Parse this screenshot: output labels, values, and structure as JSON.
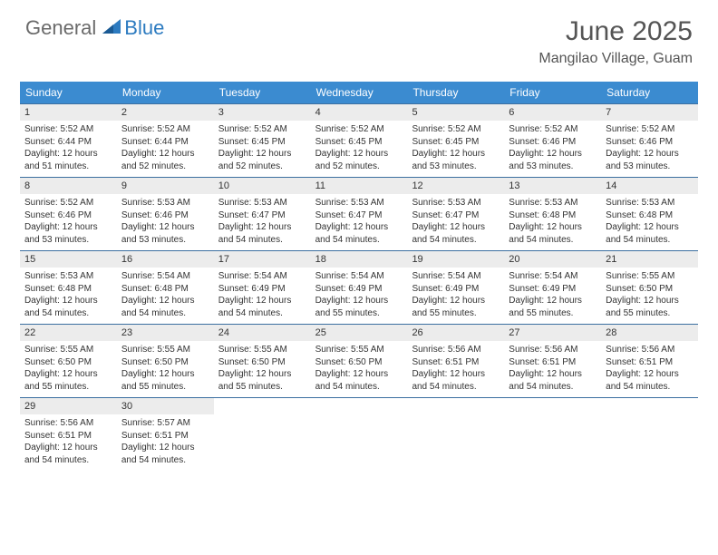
{
  "brand": {
    "word1": "General",
    "word2": "Blue"
  },
  "title": "June 2025",
  "location": "Mangilao Village, Guam",
  "colors": {
    "header_bg": "#3b8bd0",
    "header_text": "#ffffff",
    "daynum_bg": "#ececec",
    "rule": "#3b6fa0",
    "logo_gray": "#6a6a6a",
    "logo_blue": "#2d7bc0"
  },
  "day_names": [
    "Sunday",
    "Monday",
    "Tuesday",
    "Wednesday",
    "Thursday",
    "Friday",
    "Saturday"
  ],
  "weeks": [
    [
      {
        "n": "1",
        "sr": "Sunrise: 5:52 AM",
        "ss": "Sunset: 6:44 PM",
        "d1": "Daylight: 12 hours",
        "d2": "and 51 minutes."
      },
      {
        "n": "2",
        "sr": "Sunrise: 5:52 AM",
        "ss": "Sunset: 6:44 PM",
        "d1": "Daylight: 12 hours",
        "d2": "and 52 minutes."
      },
      {
        "n": "3",
        "sr": "Sunrise: 5:52 AM",
        "ss": "Sunset: 6:45 PM",
        "d1": "Daylight: 12 hours",
        "d2": "and 52 minutes."
      },
      {
        "n": "4",
        "sr": "Sunrise: 5:52 AM",
        "ss": "Sunset: 6:45 PM",
        "d1": "Daylight: 12 hours",
        "d2": "and 52 minutes."
      },
      {
        "n": "5",
        "sr": "Sunrise: 5:52 AM",
        "ss": "Sunset: 6:45 PM",
        "d1": "Daylight: 12 hours",
        "d2": "and 53 minutes."
      },
      {
        "n": "6",
        "sr": "Sunrise: 5:52 AM",
        "ss": "Sunset: 6:46 PM",
        "d1": "Daylight: 12 hours",
        "d2": "and 53 minutes."
      },
      {
        "n": "7",
        "sr": "Sunrise: 5:52 AM",
        "ss": "Sunset: 6:46 PM",
        "d1": "Daylight: 12 hours",
        "d2": "and 53 minutes."
      }
    ],
    [
      {
        "n": "8",
        "sr": "Sunrise: 5:52 AM",
        "ss": "Sunset: 6:46 PM",
        "d1": "Daylight: 12 hours",
        "d2": "and 53 minutes."
      },
      {
        "n": "9",
        "sr": "Sunrise: 5:53 AM",
        "ss": "Sunset: 6:46 PM",
        "d1": "Daylight: 12 hours",
        "d2": "and 53 minutes."
      },
      {
        "n": "10",
        "sr": "Sunrise: 5:53 AM",
        "ss": "Sunset: 6:47 PM",
        "d1": "Daylight: 12 hours",
        "d2": "and 54 minutes."
      },
      {
        "n": "11",
        "sr": "Sunrise: 5:53 AM",
        "ss": "Sunset: 6:47 PM",
        "d1": "Daylight: 12 hours",
        "d2": "and 54 minutes."
      },
      {
        "n": "12",
        "sr": "Sunrise: 5:53 AM",
        "ss": "Sunset: 6:47 PM",
        "d1": "Daylight: 12 hours",
        "d2": "and 54 minutes."
      },
      {
        "n": "13",
        "sr": "Sunrise: 5:53 AM",
        "ss": "Sunset: 6:48 PM",
        "d1": "Daylight: 12 hours",
        "d2": "and 54 minutes."
      },
      {
        "n": "14",
        "sr": "Sunrise: 5:53 AM",
        "ss": "Sunset: 6:48 PM",
        "d1": "Daylight: 12 hours",
        "d2": "and 54 minutes."
      }
    ],
    [
      {
        "n": "15",
        "sr": "Sunrise: 5:53 AM",
        "ss": "Sunset: 6:48 PM",
        "d1": "Daylight: 12 hours",
        "d2": "and 54 minutes."
      },
      {
        "n": "16",
        "sr": "Sunrise: 5:54 AM",
        "ss": "Sunset: 6:48 PM",
        "d1": "Daylight: 12 hours",
        "d2": "and 54 minutes."
      },
      {
        "n": "17",
        "sr": "Sunrise: 5:54 AM",
        "ss": "Sunset: 6:49 PM",
        "d1": "Daylight: 12 hours",
        "d2": "and 54 minutes."
      },
      {
        "n": "18",
        "sr": "Sunrise: 5:54 AM",
        "ss": "Sunset: 6:49 PM",
        "d1": "Daylight: 12 hours",
        "d2": "and 55 minutes."
      },
      {
        "n": "19",
        "sr": "Sunrise: 5:54 AM",
        "ss": "Sunset: 6:49 PM",
        "d1": "Daylight: 12 hours",
        "d2": "and 55 minutes."
      },
      {
        "n": "20",
        "sr": "Sunrise: 5:54 AM",
        "ss": "Sunset: 6:49 PM",
        "d1": "Daylight: 12 hours",
        "d2": "and 55 minutes."
      },
      {
        "n": "21",
        "sr": "Sunrise: 5:55 AM",
        "ss": "Sunset: 6:50 PM",
        "d1": "Daylight: 12 hours",
        "d2": "and 55 minutes."
      }
    ],
    [
      {
        "n": "22",
        "sr": "Sunrise: 5:55 AM",
        "ss": "Sunset: 6:50 PM",
        "d1": "Daylight: 12 hours",
        "d2": "and 55 minutes."
      },
      {
        "n": "23",
        "sr": "Sunrise: 5:55 AM",
        "ss": "Sunset: 6:50 PM",
        "d1": "Daylight: 12 hours",
        "d2": "and 55 minutes."
      },
      {
        "n": "24",
        "sr": "Sunrise: 5:55 AM",
        "ss": "Sunset: 6:50 PM",
        "d1": "Daylight: 12 hours",
        "d2": "and 55 minutes."
      },
      {
        "n": "25",
        "sr": "Sunrise: 5:55 AM",
        "ss": "Sunset: 6:50 PM",
        "d1": "Daylight: 12 hours",
        "d2": "and 54 minutes."
      },
      {
        "n": "26",
        "sr": "Sunrise: 5:56 AM",
        "ss": "Sunset: 6:51 PM",
        "d1": "Daylight: 12 hours",
        "d2": "and 54 minutes."
      },
      {
        "n": "27",
        "sr": "Sunrise: 5:56 AM",
        "ss": "Sunset: 6:51 PM",
        "d1": "Daylight: 12 hours",
        "d2": "and 54 minutes."
      },
      {
        "n": "28",
        "sr": "Sunrise: 5:56 AM",
        "ss": "Sunset: 6:51 PM",
        "d1": "Daylight: 12 hours",
        "d2": "and 54 minutes."
      }
    ],
    [
      {
        "n": "29",
        "sr": "Sunrise: 5:56 AM",
        "ss": "Sunset: 6:51 PM",
        "d1": "Daylight: 12 hours",
        "d2": "and 54 minutes."
      },
      {
        "n": "30",
        "sr": "Sunrise: 5:57 AM",
        "ss": "Sunset: 6:51 PM",
        "d1": "Daylight: 12 hours",
        "d2": "and 54 minutes."
      },
      null,
      null,
      null,
      null,
      null
    ]
  ]
}
